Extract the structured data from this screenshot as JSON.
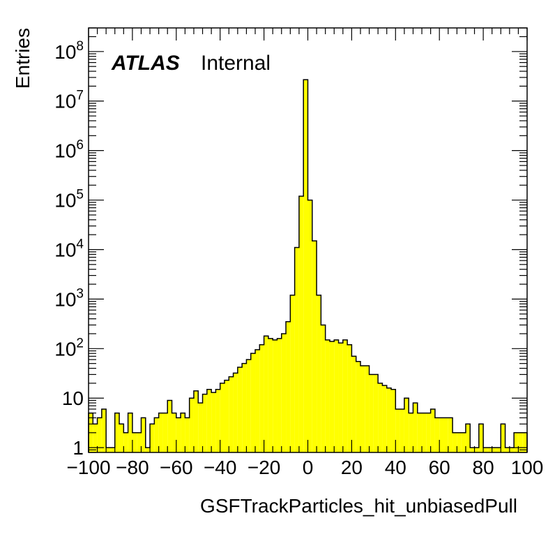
{
  "chart_data": {
    "type": "bar",
    "style": "step-histogram",
    "fill_color": "#ffff00",
    "line_color": "#000000",
    "title": "",
    "xlabel": "GSFTrackParticles_hit_unbiasedPull",
    "ylabel": "Entries",
    "xlim": [
      -100,
      100
    ],
    "ylim": [
      0.8,
      300000000
    ],
    "y_scale": "log",
    "x_ticks": [
      "−100",
      "−80",
      "−60",
      "−40",
      "−20",
      "0",
      "20",
      "40",
      "60",
      "80",
      "100"
    ],
    "y_ticks": [
      {
        "base": "1",
        "exp": ""
      },
      {
        "base": "10",
        "exp": ""
      },
      {
        "base": "10",
        "exp": "2"
      },
      {
        "base": "10",
        "exp": "3"
      },
      {
        "base": "10",
        "exp": "4"
      },
      {
        "base": "10",
        "exp": "5"
      },
      {
        "base": "10",
        "exp": "6"
      },
      {
        "base": "10",
        "exp": "7"
      },
      {
        "base": "10",
        "exp": "8"
      }
    ],
    "label_bold": "ATLAS",
    "label_rest": "Internal",
    "bin_edges_start": -100,
    "bin_width": 2,
    "values": [
      5,
      3,
      4,
      6,
      1,
      1,
      5,
      3,
      2,
      5,
      2,
      2,
      4,
      1,
      3,
      4,
      5,
      5,
      9,
      5,
      4,
      5,
      4,
      10,
      14,
      8,
      12,
      15,
      13,
      15,
      20,
      23,
      27,
      32,
      42,
      50,
      60,
      80,
      95,
      120,
      180,
      160,
      150,
      160,
      200,
      350,
      1200,
      11000,
      120000,
      27000000,
      100000,
      15000,
      1200,
      300,
      150,
      140,
      150,
      130,
      150,
      120,
      70,
      55,
      45,
      45,
      30,
      30,
      20,
      18,
      16,
      15,
      6,
      6,
      10,
      5,
      8,
      5,
      5,
      5,
      6,
      4,
      4,
      4,
      4,
      2,
      2,
      2,
      3,
      1,
      1,
      3,
      1,
      1,
      1,
      1,
      3,
      1,
      1,
      2,
      2,
      2
    ]
  }
}
